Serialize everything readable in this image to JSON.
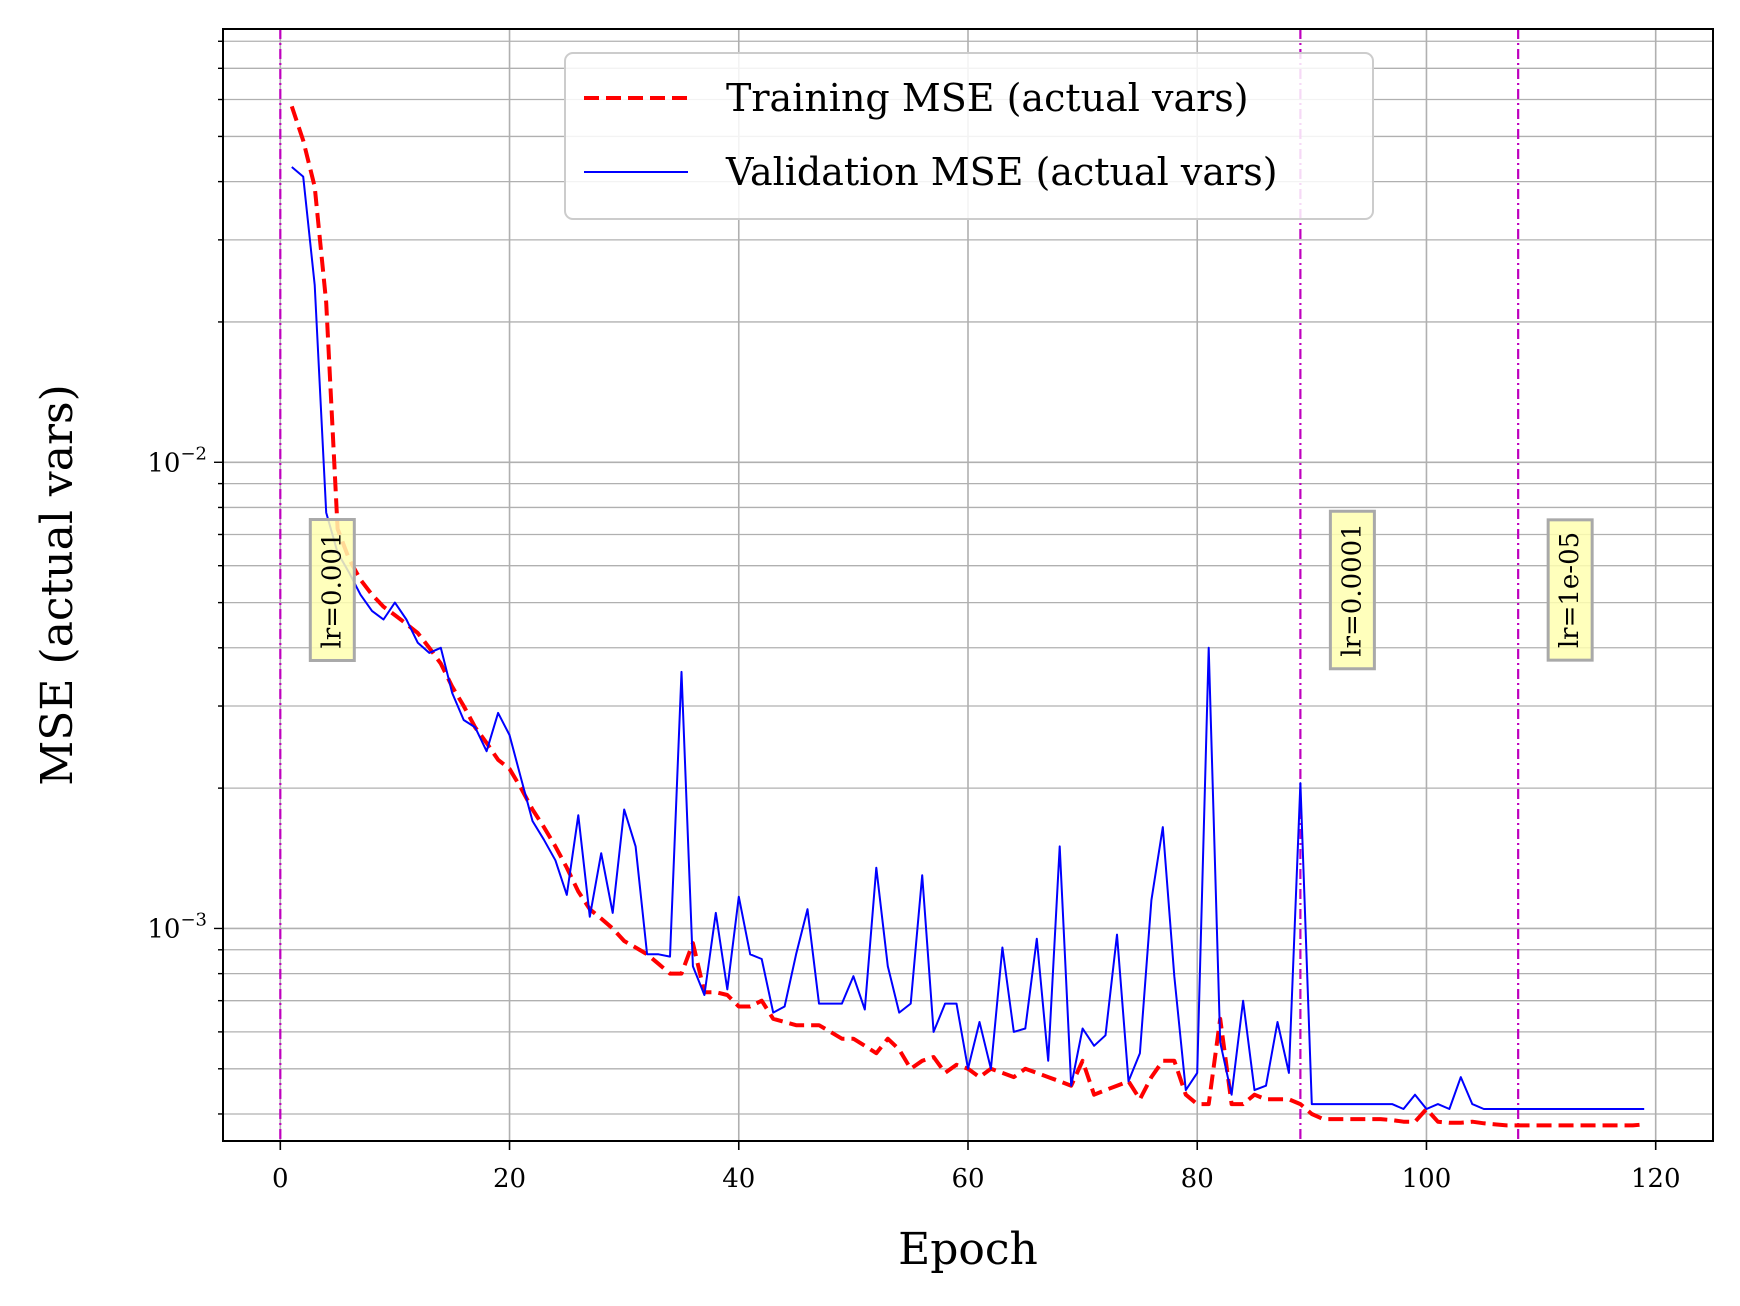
{
  "chart_data": {
    "type": "line",
    "xlabel": "Epoch",
    "ylabel": "MSE (actual vars)",
    "xlim": [
      -5,
      125
    ],
    "ylim": [
      0.00035,
      0.085
    ],
    "yscale": "log",
    "grid": true,
    "grid_minor_y": true,
    "legend_position": "upper center",
    "x_ticks": [
      0,
      20,
      40,
      60,
      80,
      100,
      120
    ],
    "x_tick_labels": [
      "0",
      "20",
      "40",
      "60",
      "80",
      "100",
      "120"
    ],
    "y_major_ticks": [
      0.001,
      0.01
    ],
    "y_tick_labels": [
      {
        "base": "10",
        "exp": "−3",
        "value": 0.001
      },
      {
        "base": "10",
        "exp": "−2",
        "value": 0.01
      }
    ],
    "series": [
      {
        "name": "Training MSE (actual vars)",
        "color": "#ff0000",
        "dash": "dashed",
        "x": [
          1,
          2,
          3,
          4,
          5,
          6,
          7,
          8,
          9,
          10,
          11,
          12,
          13,
          14,
          15,
          16,
          17,
          18,
          19,
          20,
          21,
          22,
          23,
          24,
          25,
          26,
          27,
          28,
          29,
          30,
          31,
          32,
          33,
          34,
          35,
          36,
          37,
          38,
          39,
          40,
          41,
          42,
          43,
          44,
          45,
          46,
          47,
          48,
          49,
          50,
          51,
          52,
          53,
          54,
          55,
          56,
          57,
          58,
          59,
          60,
          61,
          62,
          63,
          64,
          65,
          66,
          67,
          68,
          69,
          70,
          71,
          72,
          73,
          74,
          75,
          76,
          77,
          78,
          79,
          80,
          81,
          82,
          83,
          84,
          85,
          86,
          87,
          88,
          89,
          90,
          91,
          92,
          93,
          94,
          95,
          96,
          97,
          98,
          99,
          100,
          101,
          102,
          103,
          104,
          105,
          106,
          107,
          108,
          109,
          110,
          111,
          112,
          113,
          114,
          115,
          116,
          117,
          118,
          119
        ],
        "y": [
          0.058,
          0.049,
          0.039,
          0.022,
          0.0072,
          0.0062,
          0.0056,
          0.0052,
          0.0049,
          0.0047,
          0.0045,
          0.0043,
          0.004,
          0.0037,
          0.0033,
          0.003,
          0.0027,
          0.0025,
          0.0023,
          0.0022,
          0.002,
          0.0018,
          0.00165,
          0.0015,
          0.00135,
          0.0012,
          0.0011,
          0.00105,
          0.001,
          0.00094,
          0.00091,
          0.00088,
          0.00084,
          0.0008,
          0.0008,
          0.00093,
          0.00073,
          0.00073,
          0.00072,
          0.00068,
          0.00068,
          0.0007,
          0.00064,
          0.00063,
          0.00062,
          0.00062,
          0.00062,
          0.0006,
          0.00058,
          0.00058,
          0.00056,
          0.00054,
          0.00058,
          0.00055,
          0.0005,
          0.00052,
          0.00053,
          0.00049,
          0.00051,
          0.0005,
          0.00048,
          0.0005,
          0.00049,
          0.00048,
          0.0005,
          0.00049,
          0.00048,
          0.00047,
          0.00046,
          0.00052,
          0.00044,
          0.00045,
          0.00046,
          0.00047,
          0.00043,
          0.00048,
          0.00052,
          0.00052,
          0.00044,
          0.00042,
          0.00042,
          0.00064,
          0.00042,
          0.00042,
          0.00044,
          0.00043,
          0.00043,
          0.00043,
          0.00042,
          0.0004,
          0.00039,
          0.00039,
          0.00039,
          0.00039,
          0.00039,
          0.00039,
          0.000388,
          0.000385,
          0.000385,
          0.00041,
          0.000385,
          0.000383,
          0.000383,
          0.000385,
          0.000382,
          0.00038,
          0.000378,
          0.000378,
          0.000378,
          0.000378,
          0.000378,
          0.000378,
          0.000378,
          0.000378,
          0.000378,
          0.000378,
          0.000378,
          0.000378,
          0.00038
        ]
      },
      {
        "name": "Validation MSE (actual vars)",
        "color": "#0000ff",
        "dash": "solid",
        "x": [
          1,
          2,
          3,
          4,
          5,
          6,
          7,
          8,
          9,
          10,
          11,
          12,
          13,
          14,
          15,
          16,
          17,
          18,
          19,
          20,
          21,
          22,
          23,
          24,
          25,
          26,
          27,
          28,
          29,
          30,
          31,
          32,
          33,
          34,
          35,
          36,
          37,
          38,
          39,
          40,
          41,
          42,
          43,
          44,
          45,
          46,
          47,
          48,
          49,
          50,
          51,
          52,
          53,
          54,
          55,
          56,
          57,
          58,
          59,
          60,
          61,
          62,
          63,
          64,
          65,
          66,
          67,
          68,
          69,
          70,
          71,
          72,
          73,
          74,
          75,
          76,
          77,
          78,
          79,
          80,
          81,
          82,
          83,
          84,
          85,
          86,
          87,
          88,
          89,
          90,
          91,
          92,
          93,
          94,
          95,
          96,
          97,
          98,
          99,
          100,
          101,
          102,
          103,
          104,
          105,
          106,
          107,
          108,
          109,
          110,
          111,
          112,
          113,
          114,
          115,
          116,
          117,
          118,
          119
        ],
        "y": [
          0.043,
          0.041,
          0.024,
          0.0078,
          0.0064,
          0.0058,
          0.0052,
          0.0048,
          0.0046,
          0.005,
          0.0046,
          0.0041,
          0.0039,
          0.004,
          0.0032,
          0.0028,
          0.0027,
          0.0024,
          0.0029,
          0.0026,
          0.0021,
          0.0017,
          0.00155,
          0.0014,
          0.00118,
          0.00175,
          0.00106,
          0.00145,
          0.00108,
          0.0018,
          0.0015,
          0.00088,
          0.00088,
          0.00087,
          0.00355,
          0.00083,
          0.00072,
          0.00108,
          0.00074,
          0.00117,
          0.00088,
          0.00086,
          0.00066,
          0.00068,
          0.00088,
          0.0011,
          0.00069,
          0.00069,
          0.00069,
          0.00079,
          0.00067,
          0.00135,
          0.00083,
          0.00066,
          0.00069,
          0.0013,
          0.0006,
          0.00069,
          0.00069,
          0.0005,
          0.00063,
          0.0005,
          0.00091,
          0.0006,
          0.00061,
          0.00095,
          0.00052,
          0.0015,
          0.00046,
          0.00061,
          0.00056,
          0.00059,
          0.00097,
          0.00047,
          0.00054,
          0.00115,
          0.00165,
          0.00079,
          0.00045,
          0.00049,
          0.004,
          0.00057,
          0.00044,
          0.0007,
          0.00045,
          0.00046,
          0.00063,
          0.00049,
          0.00205,
          0.00042,
          0.00042,
          0.00042,
          0.00042,
          0.00042,
          0.00042,
          0.00042,
          0.00042,
          0.00041,
          0.00044,
          0.00041,
          0.00042,
          0.00041,
          0.00048,
          0.00042,
          0.00041,
          0.00041,
          0.00041,
          0.00041,
          0.00041,
          0.00041,
          0.00041,
          0.00041,
          0.00041,
          0.00041,
          0.00041,
          0.00041,
          0.00041,
          0.00041,
          0.00041
        ]
      }
    ],
    "vlines": [
      {
        "x": 0,
        "label": "lr=0.001",
        "color": "#bf00bf"
      },
      {
        "x": 89,
        "label": "lr=0.0001",
        "color": "#bf00bf"
      },
      {
        "x": 108,
        "label": "lr=1e-05",
        "color": "#bf00bf"
      }
    ],
    "annotation_box_color": "#ffffb0",
    "annotation_border_color": "#a9a9a9"
  }
}
